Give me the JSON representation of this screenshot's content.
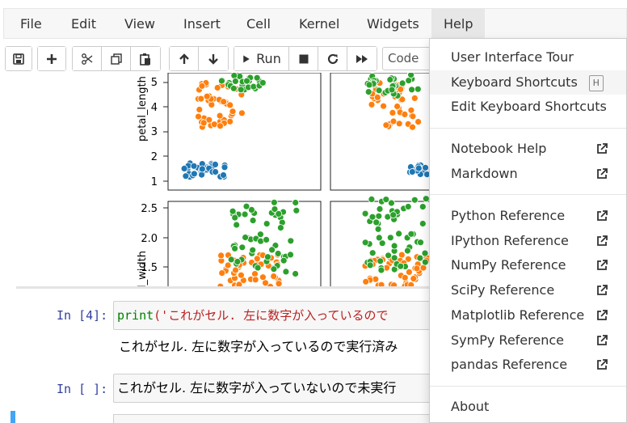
{
  "menubar": {
    "items": [
      "File",
      "Edit",
      "View",
      "Insert",
      "Cell",
      "Kernel",
      "Widgets",
      "Help"
    ],
    "open_menu": "Help"
  },
  "toolbar": {
    "run_label": "Run",
    "cell_type": "Code"
  },
  "plot": {
    "ylabel_top": "petal_length",
    "ylabel_bottom": "l_width",
    "yticks_top": [
      "5",
      "4",
      "3",
      "2",
      "1"
    ],
    "yticks_bottom": [
      "2.5",
      "2.0",
      "1.5"
    ],
    "colors": {
      "setosa": "#1f77b4",
      "versicolor": "#ff7f0e",
      "virginica": "#2ca02c"
    }
  },
  "cells": {
    "cell4_prompt": "In [4]:",
    "cell4_code_fn": "print",
    "cell4_code_str": "('これがセル. 左に数字が入っているので",
    "cell4_output": "これがセル. 左に数字が入っているので実行済み",
    "cell5_prompt": "In [ ]:",
    "cell5_code": "これがセル. 左に数字が入っていないので未実行"
  },
  "help_menu": {
    "items": [
      {
        "label": "User Interface Tour"
      },
      {
        "label": "Keyboard Shortcuts",
        "shortcut": "H"
      },
      {
        "label": "Edit Keyboard Shortcuts"
      },
      {
        "label": "Notebook Help"
      },
      {
        "label": "Markdown"
      },
      {
        "label": "Python Reference"
      },
      {
        "label": "IPython Reference"
      },
      {
        "label": "NumPy Reference"
      },
      {
        "label": "SciPy Reference"
      },
      {
        "label": "Matplotlib Reference"
      },
      {
        "label": "SymPy Reference"
      },
      {
        "label": "pandas Reference"
      },
      {
        "label": "About"
      }
    ]
  }
}
